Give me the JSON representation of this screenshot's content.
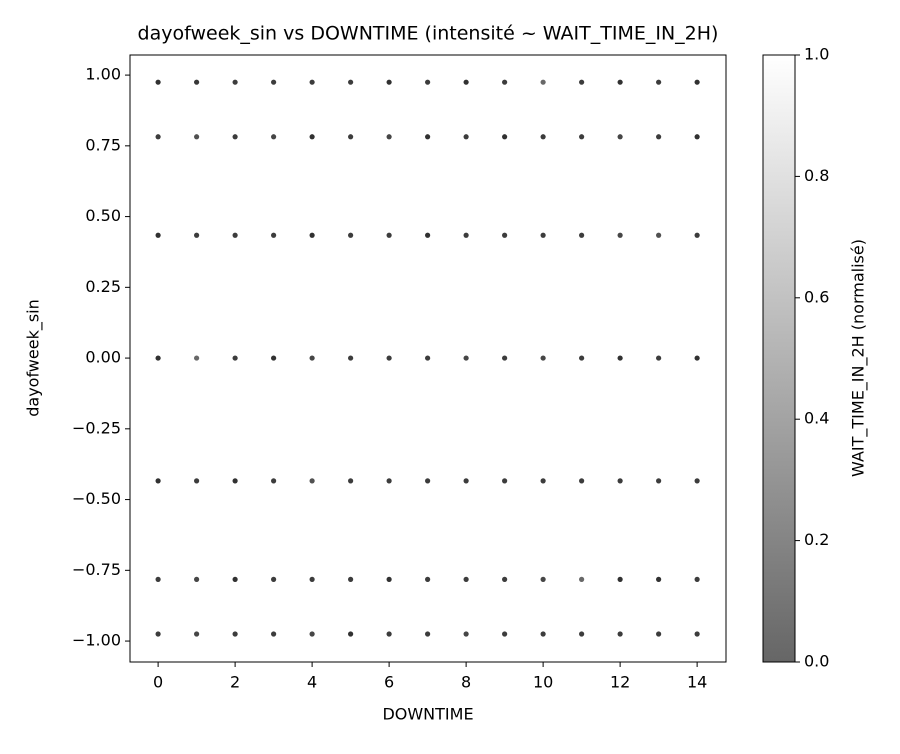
{
  "chart_data": {
    "type": "scatter",
    "title": "dayofweek_sin vs DOWNTIME (intensité ~ WAIT_TIME_IN_2H)",
    "x_label": "DOWNTIME",
    "y_label": "dayofweek_sin",
    "colorbar_label": "WAIT_TIME_IN_2H (normalisé)",
    "x": [
      0,
      1,
      2,
      3,
      4,
      5,
      6,
      7,
      8,
      9,
      10,
      11,
      12,
      13,
      14,
      0,
      1,
      2,
      3,
      4,
      5,
      6,
      7,
      8,
      9,
      10,
      11,
      12,
      13,
      14,
      0,
      1,
      2,
      3,
      4,
      5,
      6,
      7,
      8,
      9,
      10,
      11,
      12,
      13,
      14,
      0,
      1,
      2,
      3,
      4,
      5,
      6,
      7,
      8,
      9,
      10,
      11,
      12,
      13,
      14,
      0,
      1,
      2,
      3,
      4,
      5,
      6,
      7,
      8,
      9,
      10,
      11,
      12,
      13,
      14,
      0,
      1,
      2,
      3,
      4,
      5,
      6,
      7,
      8,
      9,
      10,
      11,
      12,
      13,
      14,
      0,
      1,
      2,
      3,
      4,
      5,
      6,
      7,
      8,
      9,
      10,
      11,
      12,
      13,
      14
    ],
    "y": [
      0.975,
      0.975,
      0.975,
      0.975,
      0.975,
      0.975,
      0.975,
      0.975,
      0.975,
      0.975,
      0.975,
      0.975,
      0.975,
      0.975,
      0.975,
      0.782,
      0.782,
      0.782,
      0.782,
      0.782,
      0.782,
      0.782,
      0.782,
      0.782,
      0.782,
      0.782,
      0.782,
      0.782,
      0.782,
      0.782,
      0.434,
      0.434,
      0.434,
      0.434,
      0.434,
      0.434,
      0.434,
      0.434,
      0.434,
      0.434,
      0.434,
      0.434,
      0.434,
      0.434,
      0.434,
      0,
      0,
      0,
      0,
      0,
      0,
      0,
      0,
      0,
      0,
      0,
      0,
      0,
      0,
      0,
      -0.434,
      -0.434,
      -0.434,
      -0.434,
      -0.434,
      -0.434,
      -0.434,
      -0.434,
      -0.434,
      -0.434,
      -0.434,
      -0.434,
      -0.434,
      -0.434,
      -0.434,
      -0.782,
      -0.782,
      -0.782,
      -0.782,
      -0.782,
      -0.782,
      -0.782,
      -0.782,
      -0.782,
      -0.782,
      -0.782,
      -0.782,
      -0.782,
      -0.782,
      -0.782,
      -0.975,
      -0.975,
      -0.975,
      -0.975,
      -0.975,
      -0.975,
      -0.975,
      -0.975,
      -0.975,
      -0.975,
      -0.975,
      -0.975,
      -0.975,
      -0.975,
      -0.975
    ],
    "c": [
      0.05,
      0.08,
      0.1,
      0.1,
      0.1,
      0.1,
      0.05,
      0.1,
      0.05,
      0.1,
      0.3,
      0.1,
      0.05,
      0.1,
      0.05,
      0.1,
      0.2,
      0.1,
      0.15,
      0.05,
      0.1,
      0.15,
      0.05,
      0.1,
      0.05,
      0.1,
      0.1,
      0.15,
      0.1,
      0.05,
      0.05,
      0.1,
      0.1,
      0.1,
      0.05,
      0.1,
      0.1,
      0.05,
      0.1,
      0.1,
      0.1,
      0.1,
      0.15,
      0.2,
      0.1,
      0.05,
      0.3,
      0.1,
      0.05,
      0.15,
      0.1,
      0.1,
      0.1,
      0.15,
      0.1,
      0.15,
      0.1,
      0.05,
      0.1,
      0.05,
      0.05,
      0.1,
      0.05,
      0.1,
      0.2,
      0.1,
      0.1,
      0.1,
      0.1,
      0.1,
      0.1,
      0.1,
      0.1,
      0.1,
      0.1,
      0.1,
      0.15,
      0.05,
      0.1,
      0.1,
      0.1,
      0.05,
      0.1,
      0.1,
      0.1,
      0.15,
      0.3,
      0.05,
      0.05,
      0.1,
      0.1,
      0.15,
      0.1,
      0.1,
      0.15,
      0.05,
      0.1,
      0.1,
      0.15,
      0.1,
      0.1,
      0.1,
      0.1,
      0.1,
      0.1
    ],
    "xlim": [
      -0.73,
      14.75
    ],
    "ylim": [
      -1.074,
      1.071
    ],
    "xticks": [
      0,
      2,
      4,
      6,
      8,
      10,
      12,
      14
    ],
    "yticks": [
      {
        "value": 1,
        "label": "1.00"
      },
      {
        "value": 0.75,
        "label": "0.75"
      },
      {
        "value": 0.5,
        "label": "0.50"
      },
      {
        "value": 0.25,
        "label": "0.25"
      },
      {
        "value": 0,
        "label": "0.00"
      },
      {
        "value": -0.25,
        "label": "−0.25"
      },
      {
        "value": -0.5,
        "label": "−0.50"
      },
      {
        "value": -0.75,
        "label": "−0.75"
      },
      {
        "value": -1,
        "label": "−1.00"
      }
    ],
    "clim": [
      0,
      1
    ],
    "cticks": [
      {
        "value": 0,
        "label": "0.0"
      },
      {
        "value": 0.2,
        "label": "0.2"
      },
      {
        "value": 0.4,
        "label": "0.4"
      },
      {
        "value": 0.6,
        "label": "0.6"
      },
      {
        "value": 0.8,
        "label": "0.8"
      },
      {
        "value": 1,
        "label": "1.0"
      }
    ],
    "grid": false
  }
}
